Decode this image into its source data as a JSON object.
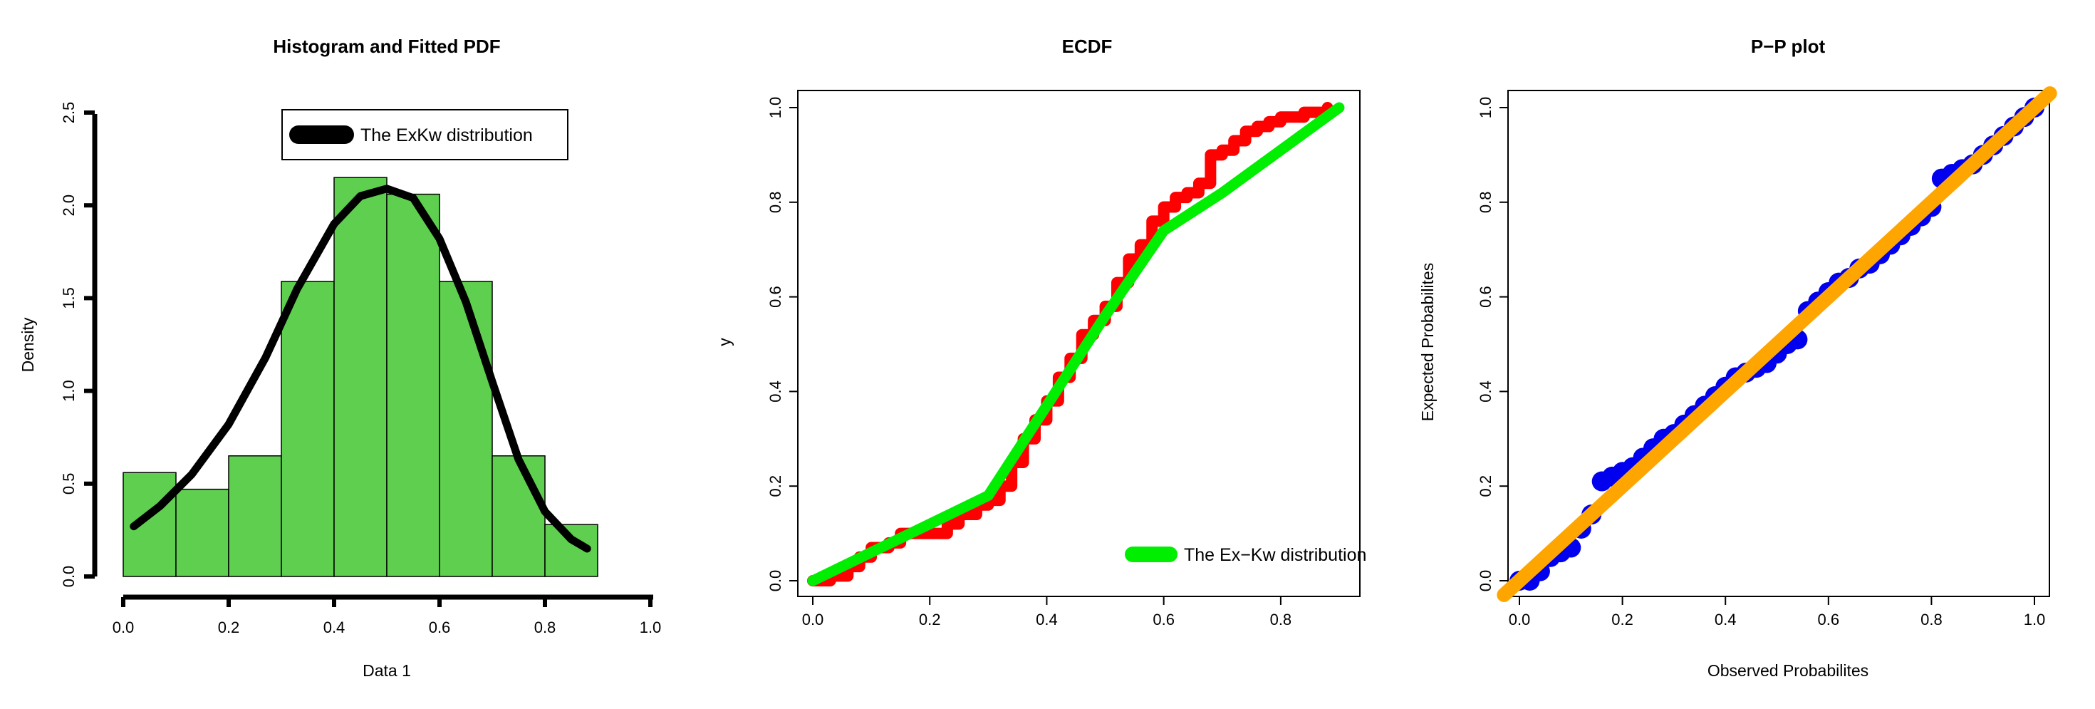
{
  "chart_data": [
    {
      "type": "bar",
      "title": "Histogram and Fitted PDF",
      "xlabel": "Data 1",
      "ylabel": "Density",
      "xlim": [
        0,
        1
      ],
      "ylim": [
        0,
        2.5
      ],
      "xticks": [
        "0.0",
        "0.2",
        "0.4",
        "0.6",
        "0.8",
        "1.0"
      ],
      "yticks": [
        "0.0",
        "0.5",
        "1.0",
        "1.5",
        "2.0",
        "2.5"
      ],
      "bar_color": "#5fcf4f",
      "bins": [
        {
          "from": 0.0,
          "to": 0.1,
          "density": 0.56
        },
        {
          "from": 0.1,
          "to": 0.2,
          "density": 0.47
        },
        {
          "from": 0.2,
          "to": 0.3,
          "density": 0.65
        },
        {
          "from": 0.3,
          "to": 0.4,
          "density": 1.59
        },
        {
          "from": 0.4,
          "to": 0.5,
          "density": 2.15
        },
        {
          "from": 0.5,
          "to": 0.6,
          "density": 2.06
        },
        {
          "from": 0.6,
          "to": 0.7,
          "density": 1.59
        },
        {
          "from": 0.7,
          "to": 0.8,
          "density": 0.65
        },
        {
          "from": 0.8,
          "to": 0.9,
          "density": 0.28
        }
      ],
      "series": [
        {
          "name": "The ExKw distribution",
          "color": "#000000",
          "x": [
            0.02,
            0.07,
            0.13,
            0.2,
            0.27,
            0.33,
            0.4,
            0.45,
            0.5,
            0.55,
            0.6,
            0.65,
            0.7,
            0.75,
            0.8,
            0.85,
            0.88
          ],
          "y": [
            0.27,
            0.38,
            0.55,
            0.82,
            1.18,
            1.55,
            1.9,
            2.05,
            2.09,
            2.04,
            1.82,
            1.48,
            1.05,
            0.63,
            0.35,
            0.2,
            0.15
          ]
        }
      ],
      "legend": "top-right"
    },
    {
      "type": "line",
      "title": "ECDF",
      "xlabel": "",
      "ylabel": "y",
      "xlim": [
        0,
        0.9
      ],
      "ylim": [
        0,
        1
      ],
      "xticks": [
        "0.0",
        "0.2",
        "0.4",
        "0.6",
        "0.8"
      ],
      "yticks": [
        "0.0",
        "0.2",
        "0.4",
        "0.6",
        "0.8",
        "1.0"
      ],
      "series": [
        {
          "name": "",
          "color": "#ff0000",
          "x": [
            0.0,
            0.03,
            0.06,
            0.08,
            0.1,
            0.13,
            0.15,
            0.18,
            0.2,
            0.23,
            0.25,
            0.28,
            0.3,
            0.32,
            0.34,
            0.36,
            0.38,
            0.4,
            0.42,
            0.44,
            0.46,
            0.48,
            0.5,
            0.52,
            0.54,
            0.56,
            0.58,
            0.6,
            0.62,
            0.64,
            0.66,
            0.68,
            0.7,
            0.72,
            0.74,
            0.76,
            0.78,
            0.8,
            0.82,
            0.84,
            0.86,
            0.88
          ],
          "y": [
            0.0,
            0.01,
            0.03,
            0.05,
            0.07,
            0.08,
            0.1,
            0.1,
            0.1,
            0.12,
            0.14,
            0.16,
            0.17,
            0.2,
            0.25,
            0.3,
            0.34,
            0.38,
            0.43,
            0.47,
            0.52,
            0.55,
            0.58,
            0.63,
            0.68,
            0.71,
            0.76,
            0.79,
            0.81,
            0.82,
            0.84,
            0.9,
            0.91,
            0.93,
            0.95,
            0.96,
            0.97,
            0.98,
            0.98,
            0.99,
            0.99,
            1.0
          ]
        },
        {
          "name": "The Ex−Kw distribution",
          "color": "#00ee00",
          "x": [
            0.0,
            0.1,
            0.2,
            0.3,
            0.4,
            0.5,
            0.6,
            0.7,
            0.8,
            0.9
          ],
          "y": [
            0.0,
            0.06,
            0.12,
            0.18,
            0.37,
            0.56,
            0.74,
            0.82,
            0.91,
            1.0
          ]
        }
      ],
      "legend": "bottom-right"
    },
    {
      "type": "scatter",
      "title": "P−P plot",
      "xlabel": "Observed Probabilites",
      "ylabel": "Expected Probabilites",
      "xlim": [
        0,
        1
      ],
      "ylim": [
        0,
        1
      ],
      "xticks": [
        "0.0",
        "0.2",
        "0.4",
        "0.6",
        "0.8",
        "1.0"
      ],
      "yticks": [
        "0.0",
        "0.2",
        "0.4",
        "0.6",
        "0.8",
        "1.0"
      ],
      "series": [
        {
          "name": "",
          "color": "#0000ee",
          "x": [
            0.0,
            0.02,
            0.04,
            0.06,
            0.08,
            0.1,
            0.12,
            0.14,
            0.16,
            0.18,
            0.2,
            0.22,
            0.24,
            0.26,
            0.28,
            0.3,
            0.32,
            0.34,
            0.36,
            0.38,
            0.4,
            0.42,
            0.44,
            0.46,
            0.48,
            0.5,
            0.52,
            0.54,
            0.56,
            0.58,
            0.6,
            0.62,
            0.64,
            0.66,
            0.68,
            0.7,
            0.72,
            0.74,
            0.76,
            0.78,
            0.8,
            0.82,
            0.84,
            0.86,
            0.88,
            0.9,
            0.92,
            0.94,
            0.96,
            0.98,
            1.0
          ],
          "y": [
            0.0,
            0.0,
            0.02,
            0.05,
            0.06,
            0.07,
            0.11,
            0.14,
            0.21,
            0.22,
            0.23,
            0.24,
            0.26,
            0.28,
            0.3,
            0.31,
            0.33,
            0.35,
            0.37,
            0.39,
            0.41,
            0.43,
            0.44,
            0.45,
            0.46,
            0.48,
            0.5,
            0.51,
            0.57,
            0.59,
            0.61,
            0.63,
            0.64,
            0.66,
            0.67,
            0.69,
            0.71,
            0.73,
            0.75,
            0.77,
            0.79,
            0.85,
            0.86,
            0.87,
            0.88,
            0.9,
            0.92,
            0.94,
            0.96,
            0.98,
            1.0
          ]
        },
        {
          "name": "",
          "color": "#ffa500",
          "x": [
            -0.03,
            1.03
          ],
          "y": [
            -0.03,
            1.03
          ]
        }
      ],
      "legend": "none"
    }
  ]
}
